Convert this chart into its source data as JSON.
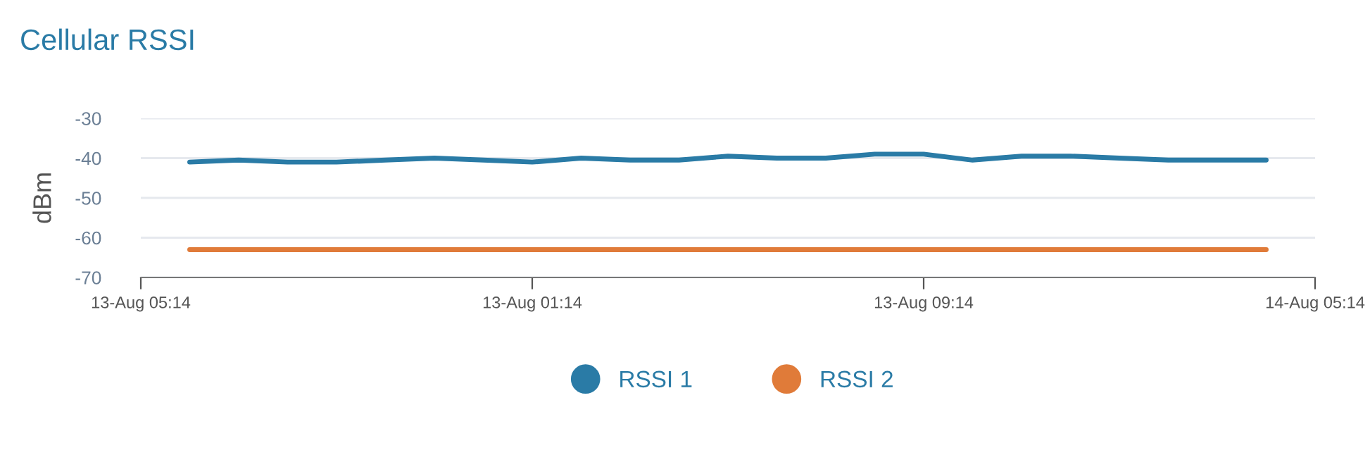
{
  "chart_data": {
    "type": "line",
    "title": "Cellular RSSI",
    "ylabel": "dBm",
    "categories": [
      "13-Aug 05:14",
      null,
      null,
      null,
      null,
      null,
      null,
      null,
      "13-Aug 01:14",
      null,
      null,
      null,
      null,
      null,
      null,
      null,
      "13-Aug 09:14",
      null,
      null,
      null,
      null,
      null,
      null,
      null,
      "14-Aug 05:14"
    ],
    "ylim": [
      -70,
      -30
    ],
    "yticks": [
      -70,
      -60,
      -50,
      -40,
      -30
    ],
    "grid": "y",
    "legend": "bottom",
    "marker": "none",
    "line_style": "solid",
    "series": [
      {
        "name": "RSSI 1",
        "color": "#2a7ba6",
        "values": [
          null,
          -41,
          -40.5,
          -41,
          -41,
          -40.5,
          -40,
          -40.5,
          -41,
          -40,
          -40.5,
          -40.5,
          -39.5,
          -40,
          -40,
          -39,
          -39,
          -40.5,
          -39.5,
          -39.5,
          -40,
          -40.5,
          -40.5,
          -40.5,
          null
        ]
      },
      {
        "name": "RSSI 2",
        "color": "#e07b39",
        "values": [
          null,
          -63,
          -63,
          -63,
          -63,
          -63,
          -63,
          -63,
          -63,
          -63,
          -63,
          -63,
          -63,
          -63,
          -63,
          -63,
          -63,
          -63,
          -63,
          -63,
          -63,
          -63,
          -63,
          -63,
          null
        ]
      }
    ]
  }
}
